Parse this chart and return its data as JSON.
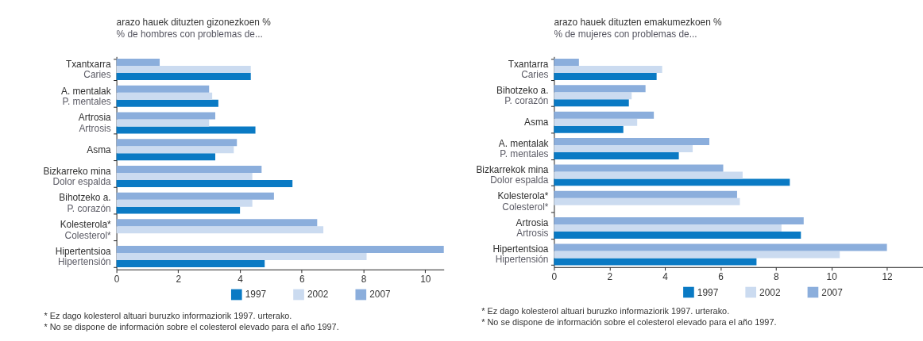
{
  "chart_data": [
    {
      "type": "bar",
      "orientation": "horizontal",
      "title": "arazo hauek dituzten gizonezkoen %",
      "subtitle": "% de hombres con problemas de...",
      "categories": [
        "Txantxarra\nCaries",
        "A. mentalak\nP. mentales",
        "Artrosia\nArtrosis",
        "Asma",
        "Bizkarreko mina\nDolor espalda",
        "Bihotzeko a.\nP. corazón",
        "Kolesterola*\nColesterol*",
        "Hipertentsioa\nHipertensión"
      ],
      "series": [
        {
          "name": "1997",
          "color": "#0a7ac4",
          "values": [
            4.35,
            3.3,
            4.5,
            3.2,
            5.7,
            4.0,
            null,
            4.8
          ]
        },
        {
          "name": "2002",
          "color": "#cbdbf0",
          "values": [
            4.35,
            3.1,
            3.0,
            3.8,
            4.4,
            4.4,
            6.7,
            8.1
          ]
        },
        {
          "name": "2007",
          "color": "#8baedc",
          "values": [
            1.4,
            3.0,
            3.2,
            3.9,
            4.7,
            5.1,
            6.5,
            10.6
          ]
        }
      ],
      "xlim": [
        0,
        10.6
      ],
      "xticks": [
        0,
        2,
        4,
        6,
        8,
        10
      ],
      "legend": "bottom",
      "annotations": [
        "* Ez dago kolesterol altuari buruzko informaziorik 1997. urterako.",
        "* No se dispone de información sobre el colesterol elevado para el año 1997."
      ]
    },
    {
      "type": "bar",
      "orientation": "horizontal",
      "title": "arazo hauek dituzten emakumezkoen %",
      "subtitle": "% de mujeres con problemas de...",
      "categories": [
        "Txantarra\nCaries",
        "Bihotzeko a.\nP. corazón",
        "Asma",
        "A. mentalak\nP. mentales",
        "Bizkarrekok mina\nDolor espalda",
        "Kolesterola*\nColesterol*",
        "Artrosia\nArtrosis",
        "Hipertentsioa\nHipertensión"
      ],
      "series": [
        {
          "name": "1997",
          "color": "#0a7ac4",
          "values": [
            3.7,
            2.7,
            2.5,
            4.5,
            8.5,
            null,
            8.9,
            7.3
          ]
        },
        {
          "name": "2002",
          "color": "#cbdbf0",
          "values": [
            3.9,
            2.8,
            3.0,
            5.0,
            6.8,
            6.7,
            8.2,
            10.3
          ]
        },
        {
          "name": "2007",
          "color": "#8baedc",
          "values": [
            0.9,
            3.3,
            3.6,
            5.6,
            6.1,
            6.6,
            9.0,
            12.0
          ]
        }
      ],
      "xlim": [
        0,
        13.3
      ],
      "xticks": [
        0,
        2,
        4,
        6,
        8,
        10,
        12
      ],
      "legend": "bottom",
      "annotations": [
        "* Ez dago kolesterol altuari buruzko informaziorik 1997. urterako.",
        "* No se dispone de información sobre el colesterol elevado para el año 1997."
      ]
    }
  ]
}
